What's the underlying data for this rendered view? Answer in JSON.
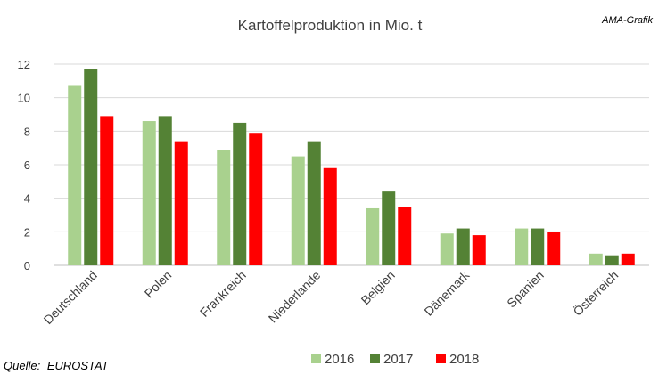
{
  "header": {
    "brand": "AMA-Grafik"
  },
  "source_note": {
    "label": "Quelle:",
    "value": "EUROSTAT"
  },
  "chart_data": {
    "type": "bar",
    "title": "Kartoffelproduktion  in Mio. t",
    "xlabel": "",
    "ylabel": "",
    "categories": [
      "Deutschland",
      "Polen",
      "Frankreich",
      "Niederlande",
      "Belgien",
      "Dänemark",
      "Spanien",
      "Österreich"
    ],
    "series": [
      {
        "name": "2016",
        "color": "#a9d18e",
        "values": [
          10.7,
          8.6,
          6.9,
          6.5,
          3.4,
          1.9,
          2.2,
          0.7
        ]
      },
      {
        "name": "2017",
        "color": "#548235",
        "values": [
          11.7,
          8.9,
          8.5,
          7.4,
          4.4,
          2.2,
          2.2,
          0.6
        ]
      },
      {
        "name": "2018",
        "color": "#ff0000",
        "values": [
          8.9,
          7.4,
          7.9,
          5.8,
          3.5,
          1.8,
          2.0,
          0.7
        ]
      }
    ],
    "ylim": [
      0,
      12
    ],
    "yticks": [
      0,
      2,
      4,
      6,
      8,
      10,
      12
    ],
    "grid": true,
    "legend": "bottom-right"
  }
}
